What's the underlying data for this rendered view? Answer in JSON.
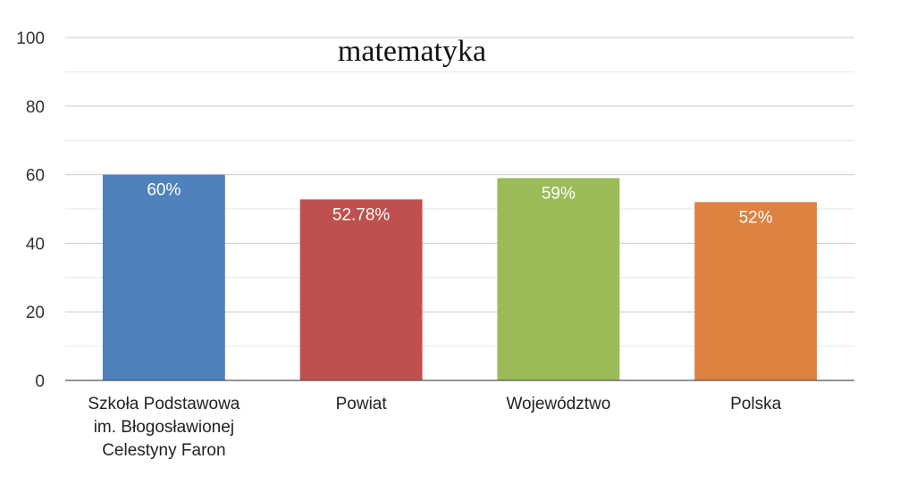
{
  "chart_data": {
    "type": "bar",
    "title": "matematyka",
    "xlabel": "",
    "ylabel": "",
    "categories": [
      [
        "Szkoła Podstawowa",
        "im. Błogosławionej",
        "Celestyny Faron"
      ],
      [
        "Powiat"
      ],
      [
        "Województwo"
      ],
      [
        "Polska"
      ]
    ],
    "values": [
      60,
      52.78,
      59,
      52
    ],
    "data_labels": [
      "60%",
      "52.78%",
      "59%",
      "52%"
    ],
    "colors": [
      "#4f81bd",
      "#c0504d",
      "#9bbb59",
      "#dd8240"
    ],
    "ylim": [
      0,
      100
    ],
    "y_ticks": [
      0,
      20,
      40,
      60,
      80,
      100
    ],
    "y_tick_labels": [
      "0",
      "20",
      "40",
      "60",
      "80",
      "100"
    ],
    "minor_gridlines": true,
    "legend": "none"
  }
}
